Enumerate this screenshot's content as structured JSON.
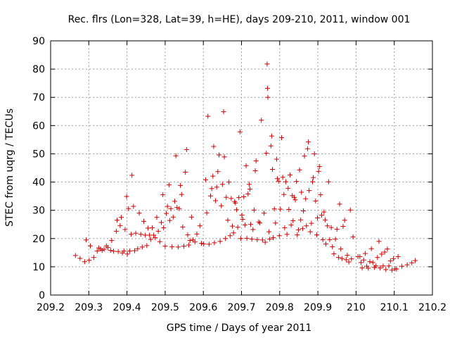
{
  "chart_data": {
    "type": "scatter",
    "title": "Rec. flrs (Lon=328, Lat=39, h=HE), days 209-210, 2011, window 001",
    "xlabel": "GPS time / Days of year 2011",
    "ylabel": "STEC from uqrg / TECUs",
    "xlim": [
      209.2,
      210.2
    ],
    "ylim": [
      0,
      90
    ],
    "xticks": [
      "209.2",
      "209.3",
      "209.4",
      "209.5",
      "209.6",
      "209.7",
      "209.8",
      "209.9",
      "210",
      "210.1",
      "210.2"
    ],
    "yticks": [
      "0",
      "10",
      "20",
      "30",
      "40",
      "50",
      "60",
      "70",
      "80",
      "90"
    ],
    "grid": true,
    "marker": "+",
    "color": "#d00000",
    "points": [
      [
        209.265,
        14
      ],
      [
        209.277,
        13
      ],
      [
        209.289,
        11.8
      ],
      [
        209.293,
        19.5
      ],
      [
        209.301,
        12.3
      ],
      [
        209.304,
        17.4
      ],
      [
        209.313,
        13.3
      ],
      [
        209.322,
        15.6
      ],
      [
        209.326,
        16.7
      ],
      [
        209.331,
        16.3
      ],
      [
        209.335,
        15.8
      ],
      [
        209.34,
        16.2
      ],
      [
        209.346,
        17.4
      ],
      [
        209.35,
        16.8
      ],
      [
        209.357,
        15.8
      ],
      [
        209.36,
        19.3
      ],
      [
        209.365,
        15.5
      ],
      [
        209.372,
        22.6
      ],
      [
        209.374,
        26.5
      ],
      [
        209.377,
        15.4
      ],
      [
        209.382,
        24.6
      ],
      [
        209.385,
        27.5
      ],
      [
        209.388,
        14.9
      ],
      [
        209.392,
        15.6
      ],
      [
        209.395,
        23.2
      ],
      [
        209.399,
        34.9
      ],
      [
        209.401,
        14.5
      ],
      [
        209.404,
        30.6
      ],
      [
        209.407,
        15.6
      ],
      [
        209.411,
        21.5
      ],
      [
        209.413,
        42.4
      ],
      [
        209.417,
        31.4
      ],
      [
        209.42,
        15.7
      ],
      [
        209.423,
        21.9
      ],
      [
        209.428,
        16.4
      ],
      [
        209.432,
        29
      ],
      [
        209.436,
        21.5
      ],
      [
        209.44,
        17
      ],
      [
        209.444,
        26.1
      ],
      [
        209.448,
        21.2
      ],
      [
        209.452,
        17.5
      ],
      [
        209.455,
        23.7
      ],
      [
        209.459,
        21.2
      ],
      [
        209.462,
        19.7
      ],
      [
        209.466,
        23.8
      ],
      [
        209.47,
        21.2
      ],
      [
        209.474,
        20.3
      ],
      [
        209.478,
        27.5
      ],
      [
        209.482,
        22.6
      ],
      [
        209.486,
        18.9
      ],
      [
        209.49,
        25.7
      ],
      [
        209.494,
        35.5
      ],
      [
        209.496,
        23.8
      ],
      [
        209.5,
        17.3
      ],
      [
        209.503,
        28.9
      ],
      [
        209.506,
        31.4
      ],
      [
        209.51,
        39
      ],
      [
        209.512,
        26.4
      ],
      [
        209.515,
        30.6
      ],
      [
        209.518,
        17.1
      ],
      [
        209.521,
        27.6
      ],
      [
        209.525,
        33.2
      ],
      [
        209.528,
        49.3
      ],
      [
        209.531,
        31
      ],
      [
        209.534,
        17
      ],
      [
        209.537,
        30.6
      ],
      [
        209.54,
        38.8
      ],
      [
        209.543,
        35.6
      ],
      [
        209.546,
        24.1
      ],
      [
        209.549,
        17.3
      ],
      [
        209.553,
        43.5
      ],
      [
        209.556,
        51.5
      ],
      [
        209.559,
        21.3
      ],
      [
        209.562,
        17.7
      ],
      [
        209.565,
        19.3
      ],
      [
        209.569,
        27.6
      ],
      [
        209.573,
        19.5
      ],
      [
        209.578,
        18.8
      ],
      [
        209.583,
        21.6
      ],
      [
        209.591,
        24.5
      ],
      [
        209.595,
        18.3
      ],
      [
        209.601,
        18.1
      ],
      [
        209.606,
        40.8
      ],
      [
        209.609,
        29.1
      ],
      [
        209.612,
        63.3
      ],
      [
        209.615,
        18
      ],
      [
        209.619,
        35.1
      ],
      [
        209.622,
        37.7
      ],
      [
        209.625,
        42.1
      ],
      [
        209.627,
        52.6
      ],
      [
        209.629,
        18.5
      ],
      [
        209.632,
        33.4
      ],
      [
        209.635,
        38.2
      ],
      [
        209.638,
        43.7
      ],
      [
        209.641,
        49.6
      ],
      [
        209.644,
        19
      ],
      [
        209.647,
        31.6
      ],
      [
        209.65,
        39.2
      ],
      [
        209.653,
        64.9
      ],
      [
        209.655,
        48.9
      ],
      [
        209.658,
        20
      ],
      [
        209.66,
        34.6
      ],
      [
        209.664,
        26.5
      ],
      [
        209.667,
        40
      ],
      [
        209.67,
        21
      ],
      [
        209.673,
        34.2
      ],
      [
        209.676,
        24.4
      ],
      [
        209.679,
        22
      ],
      [
        209.682,
        33.1
      ],
      [
        209.684,
        32.6
      ],
      [
        209.687,
        30.2
      ],
      [
        209.69,
        24
      ],
      [
        209.693,
        34.5
      ],
      [
        209.696,
        57.8
      ],
      [
        209.698,
        20
      ],
      [
        209.701,
        28.3
      ],
      [
        209.703,
        26.8
      ],
      [
        209.706,
        34.8
      ],
      [
        209.709,
        24.8
      ],
      [
        209.712,
        45.8
      ],
      [
        209.714,
        20.1
      ],
      [
        209.717,
        35.8
      ],
      [
        209.72,
        39.2
      ],
      [
        209.722,
        37.5
      ],
      [
        209.724,
        25
      ],
      [
        209.727,
        19.8
      ],
      [
        209.73,
        23.2
      ],
      [
        209.733,
        30.1
      ],
      [
        209.736,
        44
      ],
      [
        209.738,
        47.5
      ],
      [
        209.741,
        19.6
      ],
      [
        209.745,
        25.9
      ],
      [
        209.748,
        25.5
      ],
      [
        209.752,
        61.9
      ],
      [
        209.755,
        19.5
      ],
      [
        209.759,
        29
      ],
      [
        209.762,
        18.7
      ],
      [
        209.765,
        50.2
      ],
      [
        209.767,
        81.8
      ],
      [
        209.768,
        73.2
      ],
      [
        209.769,
        70
      ],
      [
        209.772,
        22.4
      ],
      [
        209.774,
        19.8
      ],
      [
        209.777,
        52.8
      ],
      [
        209.779,
        56.3
      ],
      [
        209.781,
        44.5
      ],
      [
        209.783,
        20.3
      ],
      [
        209.786,
        30.5
      ],
      [
        209.789,
        25.5
      ],
      [
        209.792,
        48.1
      ],
      [
        209.794,
        41.2
      ],
      [
        209.797,
        40.3
      ],
      [
        209.799,
        21
      ],
      [
        209.802,
        30.4
      ],
      [
        209.805,
        55.7
      ],
      [
        209.808,
        41.7
      ],
      [
        209.811,
        35.6
      ],
      [
        209.813,
        23.8
      ],
      [
        209.816,
        40.1
      ],
      [
        209.819,
        21.5
      ],
      [
        209.822,
        37.8
      ],
      [
        209.824,
        30.3
      ],
      [
        209.827,
        42.5
      ],
      [
        209.83,
        24.8
      ],
      [
        209.833,
        35.2
      ],
      [
        209.835,
        26.3
      ],
      [
        209.838,
        34.6
      ],
      [
        209.841,
        33.7
      ],
      [
        209.844,
        40.2
      ],
      [
        209.846,
        21.3
      ],
      [
        209.849,
        23.1
      ],
      [
        209.852,
        44.3
      ],
      [
        209.855,
        26.6
      ],
      [
        209.857,
        36.4
      ],
      [
        209.86,
        23.5
      ],
      [
        209.862,
        29.8
      ],
      [
        209.865,
        49.2
      ],
      [
        209.868,
        34.1
      ],
      [
        209.87,
        24.5
      ],
      [
        209.873,
        51.8
      ],
      [
        209.875,
        54.2
      ],
      [
        209.877,
        37
      ],
      [
        209.88,
        22.4
      ],
      [
        209.883,
        25.4
      ],
      [
        209.886,
        40.1
      ],
      [
        209.888,
        41.6
      ],
      [
        209.891,
        50
      ],
      [
        209.894,
        33.3
      ],
      [
        209.897,
        21.3
      ],
      [
        209.899,
        27.3
      ],
      [
        209.902,
        43.8
      ],
      [
        209.904,
        45.5
      ],
      [
        209.907,
        35.5
      ],
      [
        209.91,
        28.3
      ],
      [
        209.913,
        19.6
      ],
      [
        209.916,
        29.4
      ],
      [
        209.919,
        26.6
      ],
      [
        209.921,
        18.1
      ],
      [
        209.925,
        24.5
      ],
      [
        209.928,
        40.1
      ],
      [
        209.931,
        19.6
      ],
      [
        209.935,
        23.9
      ],
      [
        209.938,
        17.1
      ],
      [
        209.942,
        14.6
      ],
      [
        209.946,
        19.8
      ],
      [
        209.95,
        23.3
      ],
      [
        209.954,
        13.3
      ],
      [
        209.957,
        32.2
      ],
      [
        209.96,
        16.3
      ],
      [
        209.963,
        12.9
      ],
      [
        209.966,
        24.3
      ],
      [
        209.97,
        26.5
      ],
      [
        209.974,
        12.5
      ],
      [
        209.977,
        14.1
      ],
      [
        209.981,
        11.7
      ],
      [
        209.985,
        30.1
      ],
      [
        209.988,
        12.8
      ],
      [
        209.992,
        20.6
      ],
      [
        210.005,
        13.6
      ],
      [
        210.01,
        13.6
      ],
      [
        210.013,
        11.5
      ],
      [
        210.016,
        9.6
      ],
      [
        210.02,
        12.4
      ],
      [
        210.024,
        14.7
      ],
      [
        210.028,
        10.2
      ],
      [
        210.032,
        9.5
      ],
      [
        210.036,
        11.8
      ],
      [
        210.04,
        16.4
      ],
      [
        210.044,
        11.5
      ],
      [
        210.048,
        9.8
      ],
      [
        210.052,
        10.3
      ],
      [
        210.056,
        13.3
      ],
      [
        210.06,
        19
      ],
      [
        210.063,
        9.6
      ],
      [
        210.067,
        14.5
      ],
      [
        210.071,
        10.3
      ],
      [
        210.075,
        15.2
      ],
      [
        210.078,
        9
      ],
      [
        210.082,
        16.3
      ],
      [
        210.086,
        10.3
      ],
      [
        210.09,
        12.1
      ],
      [
        210.094,
        8.8
      ],
      [
        210.098,
        12.9
      ],
      [
        210.102,
        9.3
      ],
      [
        210.106,
        9.2
      ],
      [
        210.11,
        13.6
      ],
      [
        210.12,
        10.2
      ],
      [
        210.134,
        10.7
      ],
      [
        210.146,
        11.4
      ],
      [
        210.155,
        12.2
      ]
    ]
  }
}
